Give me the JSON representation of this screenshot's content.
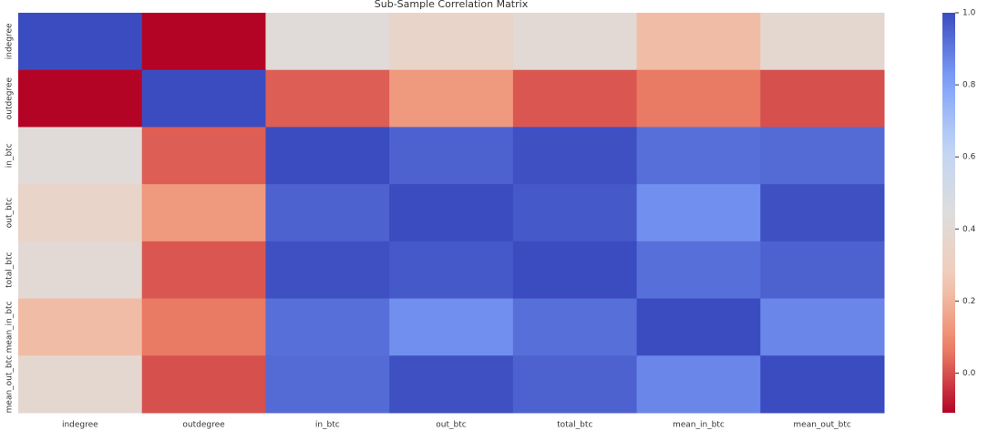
{
  "chart_data": {
    "type": "heatmap",
    "title": "Sub-Sample Correlation Matrix",
    "x_categories": [
      "indegree",
      "outdegree",
      "in_btc",
      "out_btc",
      "total_btc",
      "mean_in_btc",
      "mean_out_btc"
    ],
    "y_categories": [
      "indegree",
      "outdegree",
      "in_btc",
      "out_btc",
      "total_btc",
      "mean_in_btc",
      "mean_out_btc"
    ],
    "values": [
      [
        1.0,
        -0.11,
        0.42,
        0.35,
        0.4,
        0.22,
        0.38
      ],
      [
        -0.11,
        1.0,
        0.02,
        0.13,
        0.01,
        0.06,
        0.0
      ],
      [
        0.42,
        0.02,
        1.0,
        0.95,
        0.99,
        0.92,
        0.93
      ],
      [
        0.35,
        0.13,
        0.95,
        1.0,
        0.97,
        0.85,
        0.99
      ],
      [
        0.4,
        0.01,
        0.99,
        0.97,
        1.0,
        0.92,
        0.95
      ],
      [
        0.22,
        0.06,
        0.92,
        0.85,
        0.92,
        1.0,
        0.87
      ],
      [
        0.38,
        0.0,
        0.93,
        0.99,
        0.95,
        0.87,
        1.0
      ]
    ],
    "colormap": "coolwarm_r",
    "clim": [
      -0.11,
      1.0
    ],
    "cticks": [
      {
        "value": 0,
        "label": "0.0"
      },
      {
        "value": 0.2,
        "label": "0.2"
      },
      {
        "value": 0.4,
        "label": "0.4"
      },
      {
        "value": 0.6,
        "label": "0.6"
      },
      {
        "value": 0.8,
        "label": "0.8"
      },
      {
        "value": 1,
        "label": "1.0"
      }
    ]
  }
}
